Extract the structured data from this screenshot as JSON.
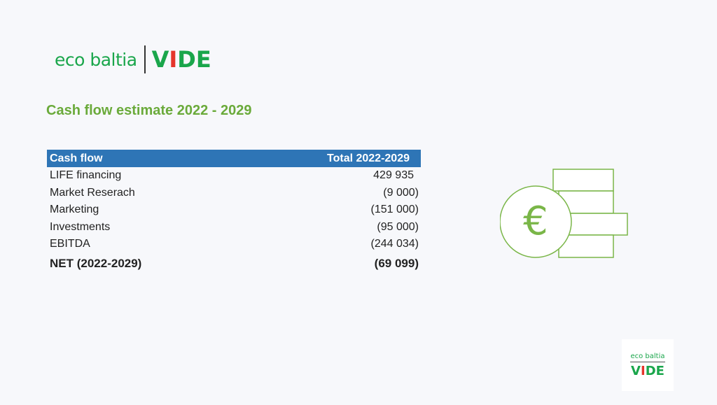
{
  "brand": {
    "eco": "eco baltia",
    "vide_parts": [
      "V",
      "I",
      "D",
      "E"
    ],
    "colors": {
      "green": "#1aa64b",
      "red": "#e5352b"
    }
  },
  "title": "Cash flow estimate 2022 - 2029",
  "table": {
    "headers": [
      "Cash flow",
      "Total 2022-2029"
    ],
    "header_color": "#2e75b6",
    "rows": [
      {
        "label": "LIFE financing",
        "value": "429 935"
      },
      {
        "label": "Market Reserach",
        "value": "(9 000)"
      },
      {
        "label": "Marketing",
        "value": "(151 000)"
      },
      {
        "label": "Investments",
        "value": "(95 000)"
      },
      {
        "label": "EBITDA",
        "value": "(244 034)"
      }
    ],
    "net": {
      "label": "NET (2022-2029)",
      "value": "(69 099)"
    }
  },
  "illustration": {
    "icon": "euro-coins-icon",
    "symbol": "€",
    "color": "#7ab648"
  }
}
